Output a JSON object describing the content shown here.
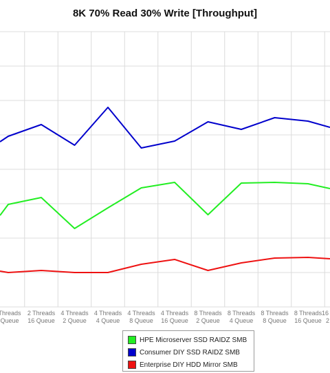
{
  "chart_data": {
    "type": "line",
    "title": "8K 70% Read 30% Write [Throughput]",
    "xlabel": "",
    "ylabel": "",
    "grid": true,
    "legend_position": "bottom",
    "categories": [
      [
        "2 Threads",
        "16 Queue"
      ],
      [
        "4 Threads",
        "2 Queue"
      ],
      [
        "4 Threads",
        "4 Queue"
      ],
      [
        "4 Threads",
        "8 Queue"
      ],
      [
        "4 Threads",
        "16 Queue"
      ],
      [
        "8 Threads",
        "2 Queue"
      ],
      [
        "8 Threads",
        "4 Queue"
      ],
      [
        "8 Threads",
        "8 Queue"
      ],
      [
        "8 Threads",
        "16 Queue"
      ]
    ],
    "partial_labels": {
      "left": [
        "Threads",
        "Queue"
      ],
      "right": [
        "16",
        "2"
      ]
    },
    "series": [
      {
        "name": "HPE Microserver SSD RAIDZ SMB",
        "color": "#22ee22",
        "values": [
          198,
          108,
          168,
          226,
          242,
          148,
          240,
          242,
          238
        ],
        "left_edge": [
          146,
          178
        ],
        "right_edge": [
          224
        ]
      },
      {
        "name": "Consumer DIY SSD RAIDZ SMB",
        "color": "#0000cc",
        "values": [
          410,
          350,
          460,
          342,
          362,
          418,
          396,
          430,
          420
        ],
        "left_edge": [
          360,
          376
        ],
        "right_edge": [
          402
        ]
      },
      {
        "name": "Enterprise DIY HDD Mirror SMB",
        "color": "#ee1111",
        "values": [
          -14,
          -20,
          -20,
          4,
          18,
          -14,
          8,
          22,
          24
        ],
        "left_edge": [
          -16,
          -20
        ],
        "right_edge": [
          20
        ]
      }
    ]
  }
}
